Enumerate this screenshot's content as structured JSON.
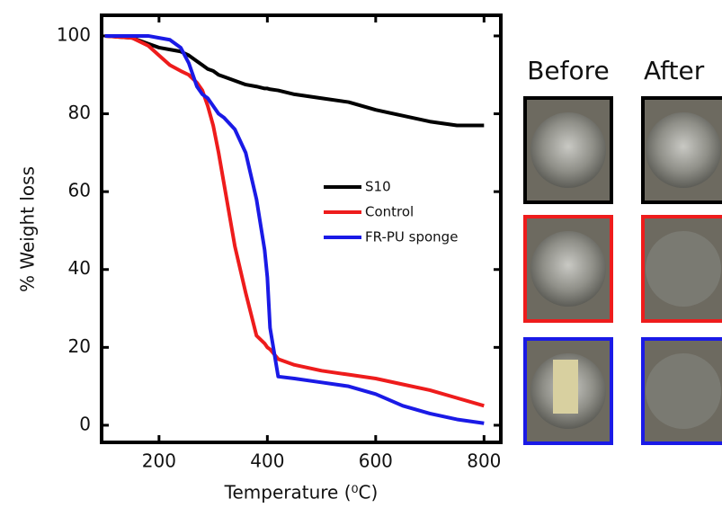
{
  "chart_data": {
    "type": "line",
    "x_label": "Temperature (⁰C)",
    "y_label": "% Weight loss",
    "annotations": [
      "Before",
      "After"
    ],
    "x": [
      100,
      150,
      180,
      200,
      220,
      240,
      255,
      270,
      280,
      290,
      300,
      310,
      320,
      340,
      360,
      380,
      395,
      400,
      405,
      420,
      450,
      500,
      550,
      600,
      650,
      700,
      750,
      800
    ],
    "series": [
      {
        "name": "S10",
        "color": "#000000",
        "values": [
          100,
          99.5,
          98,
          97,
          96.5,
          96,
          95,
          93.5,
          92.5,
          91.5,
          91,
          90,
          89.5,
          88.5,
          87.5,
          87,
          86.5,
          86.5,
          86.3,
          86,
          85,
          84,
          83,
          81,
          79.5,
          78,
          77,
          77
        ]
      },
      {
        "name": "Control",
        "color": "#ee1c1c",
        "values": [
          100,
          99.5,
          97.5,
          95,
          92.5,
          91,
          90,
          88,
          86,
          82,
          77,
          70,
          62,
          46,
          34,
          23,
          21,
          20,
          19.5,
          17,
          15.5,
          14,
          13,
          12,
          10.5,
          9,
          7,
          5
        ]
      },
      {
        "name": "FR-PU sponge",
        "color": "#1a1ae6",
        "values": [
          100,
          100,
          100,
          99.5,
          99,
          97,
          93,
          87,
          85,
          84,
          82,
          80,
          79,
          76,
          70,
          58,
          45,
          38,
          25,
          12.5,
          12,
          11,
          10,
          8,
          5,
          3,
          1.5,
          0.5
        ]
      }
    ],
    "xlim": [
      94,
      831
    ],
    "ylim": [
      -4.4,
      105.3
    ],
    "xticks": [
      200,
      400,
      600,
      800
    ],
    "yticks": [
      0,
      20,
      40,
      60,
      80,
      100
    ],
    "grid": false
  }
}
